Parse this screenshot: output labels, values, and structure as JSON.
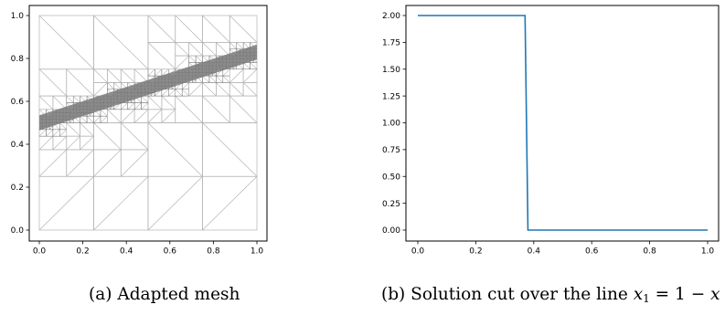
{
  "figure": {
    "captions": {
      "a": "(a) Adapted mesh",
      "b_prefix": "(b) Solution cut over the line ",
      "b_var1": "x",
      "b_sub": "1",
      "b_mid": " = 1 − ",
      "b_var2": "x"
    },
    "mesh_color": "#b4b4b4",
    "refined_color": "#7a7a7a"
  },
  "chart_data": [
    {
      "type": "mesh",
      "title": "",
      "xlabel": "",
      "ylabel": "",
      "xlim": [
        0.0,
        1.0
      ],
      "ylim": [
        0.0,
        1.0
      ],
      "xticks": [
        "0.0",
        "0.2",
        "0.4",
        "0.6",
        "0.8",
        "1.0"
      ],
      "yticks": [
        "0.0",
        "0.2",
        "0.4",
        "0.6",
        "0.8",
        "1.0"
      ],
      "refinement_line": {
        "x": [
          0.0,
          1.0
        ],
        "y": [
          0.5,
          0.83
        ]
      },
      "grid": false
    },
    {
      "type": "line",
      "title": "",
      "xlabel": "",
      "ylabel": "",
      "xlim": [
        0.0,
        1.0
      ],
      "ylim": [
        0.0,
        2.0
      ],
      "xticks": [
        "0.0",
        "0.2",
        "0.4",
        "0.6",
        "0.8",
        "1.0"
      ],
      "yticks": [
        "0.00",
        "0.25",
        "0.50",
        "0.75",
        "1.00",
        "1.25",
        "1.50",
        "1.75",
        "2.00"
      ],
      "series": [
        {
          "x": [
            0.0,
            0.37,
            0.375,
            0.38,
            1.0
          ],
          "y": [
            2.0,
            2.0,
            1.0,
            0.0,
            0.0
          ]
        }
      ],
      "line_color": "#1f77b4",
      "grid": false
    }
  ]
}
